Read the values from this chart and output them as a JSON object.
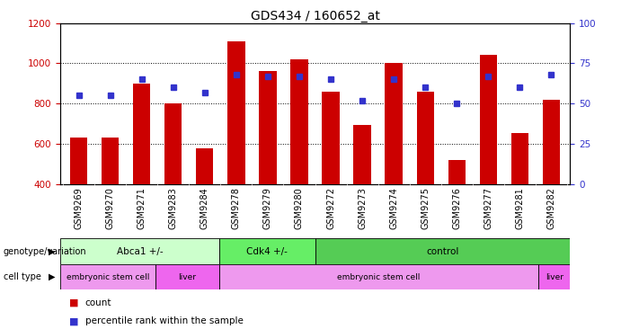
{
  "title": "GDS434 / 160652_at",
  "samples": [
    "GSM9269",
    "GSM9270",
    "GSM9271",
    "GSM9283",
    "GSM9284",
    "GSM9278",
    "GSM9279",
    "GSM9280",
    "GSM9272",
    "GSM9273",
    "GSM9274",
    "GSM9275",
    "GSM9276",
    "GSM9277",
    "GSM9281",
    "GSM9282"
  ],
  "counts": [
    630,
    630,
    900,
    800,
    580,
    1110,
    960,
    1020,
    860,
    695,
    1000,
    860,
    520,
    1040,
    655,
    820
  ],
  "percentile_ranks": [
    55,
    55,
    65,
    60,
    57,
    68,
    67,
    67,
    65,
    52,
    65,
    60,
    50,
    67,
    60,
    68
  ],
  "ylim_left": [
    400,
    1200
  ],
  "ylim_right": [
    0,
    100
  ],
  "yticks_left": [
    400,
    600,
    800,
    1000,
    1200
  ],
  "yticks_right": [
    0,
    25,
    50,
    75,
    100
  ],
  "bar_color": "#cc0000",
  "dot_color": "#3333cc",
  "genotype_groups": [
    {
      "label": "Abca1 +/-",
      "start": 0,
      "end": 5,
      "color": "#ccffcc"
    },
    {
      "label": "Cdk4 +/-",
      "start": 5,
      "end": 8,
      "color": "#66ee66"
    },
    {
      "label": "control",
      "start": 8,
      "end": 16,
      "color": "#55cc55"
    }
  ],
  "cell_type_groups": [
    {
      "label": "embryonic stem cell",
      "start": 0,
      "end": 3,
      "color": "#ee99ee"
    },
    {
      "label": "liver",
      "start": 3,
      "end": 5,
      "color": "#ee66ee"
    },
    {
      "label": "embryonic stem cell",
      "start": 5,
      "end": 15,
      "color": "#ee99ee"
    },
    {
      "label": "liver",
      "start": 15,
      "end": 16,
      "color": "#ee66ee"
    }
  ],
  "legend_items": [
    {
      "label": "count",
      "color": "#cc0000"
    },
    {
      "label": "percentile rank within the sample",
      "color": "#3333cc"
    }
  ],
  "ylabel_left_color": "#cc0000",
  "ylabel_right_color": "#3333cc",
  "background_color": "#ffffff",
  "xticklabel_bg": "#cccccc",
  "title_fontsize": 10,
  "tick_fontsize": 7.5,
  "annotation_fontsize": 8,
  "bar_width": 0.55
}
